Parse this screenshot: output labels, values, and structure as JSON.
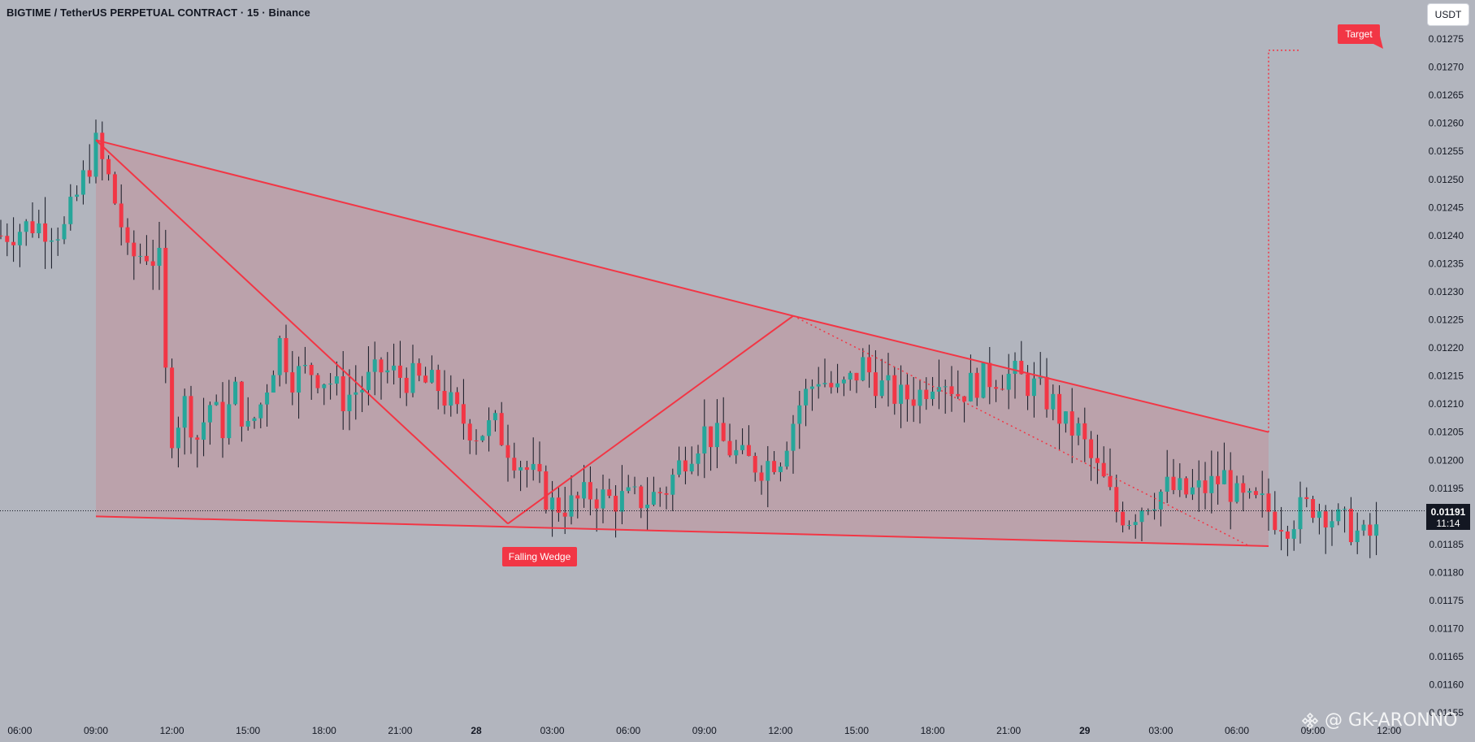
{
  "header": {
    "title": "BIGTIME / TetherUS PERPETUAL CONTRACT · 15 · Binance",
    "currency": "USDT"
  },
  "watermark": {
    "text": "@ GK-ARONNO"
  },
  "annotations": {
    "falling_wedge": "Falling Wedge",
    "target": "Target"
  },
  "price_badge": {
    "price": "0.01191",
    "countdown": "11:14"
  },
  "colors": {
    "background": "#b2b5be",
    "bull": "#26a69a",
    "bear": "#f23645",
    "pattern": "#f23645",
    "pattern_fill": "rgba(242,54,69,0.15)"
  },
  "chart_data": {
    "type": "candlestick",
    "title": "BIGTIME / TetherUS PERPETUAL CONTRACT · 15 · Binance",
    "ylim": [
      0.01155,
      0.01277
    ],
    "y_ticks": [
      "0.01275",
      "0.01270",
      "0.01265",
      "0.01260",
      "0.01255",
      "0.01250",
      "0.01245",
      "0.01240",
      "0.01235",
      "0.01230",
      "0.01225",
      "0.01220",
      "0.01215",
      "0.01210",
      "0.01205",
      "0.01200",
      "0.01195",
      "0.01190",
      "0.01185",
      "0.01180",
      "0.01175",
      "0.01170",
      "0.01165",
      "0.01160",
      "0.01155"
    ],
    "x_ticks": [
      {
        "label": "06:00",
        "idx": -12
      },
      {
        "label": "09:00",
        "idx": 0
      },
      {
        "label": "12:00",
        "idx": 12
      },
      {
        "label": "15:00",
        "idx": 24
      },
      {
        "label": "18:00",
        "idx": 36
      },
      {
        "label": "21:00",
        "idx": 48
      },
      {
        "label": "28",
        "idx": 60
      },
      {
        "label": "03:00",
        "idx": 72
      },
      {
        "label": "06:00",
        "idx": 84
      },
      {
        "label": "09:00",
        "idx": 96
      },
      {
        "label": "12:00",
        "idx": 108
      },
      {
        "label": "15:00",
        "idx": 120
      },
      {
        "label": "18:00",
        "idx": 132
      },
      {
        "label": "21:00",
        "idx": 144
      },
      {
        "label": "29",
        "idx": 156
      },
      {
        "label": "03:00",
        "idx": 168
      },
      {
        "label": "06:00",
        "idx": 180
      },
      {
        "label": "09:00",
        "idx": 192
      },
      {
        "label": "12:00",
        "idx": 204
      }
    ],
    "anchors": [
      [
        -15,
        0.0124
      ],
      [
        -10,
        0.01242
      ],
      [
        -5,
        0.01241
      ],
      [
        -2,
        0.0125
      ],
      [
        0,
        0.01256
      ],
      [
        2,
        0.0125
      ],
      [
        4,
        0.01242
      ],
      [
        5,
        0.01236
      ],
      [
        8,
        0.01237
      ],
      [
        10,
        0.01235
      ],
      [
        11,
        0.01215
      ],
      [
        12,
        0.01205
      ],
      [
        14,
        0.0121
      ],
      [
        16,
        0.01204
      ],
      [
        18,
        0.0121
      ],
      [
        20,
        0.01206
      ],
      [
        22,
        0.01212
      ],
      [
        24,
        0.01205
      ],
      [
        26,
        0.0121
      ],
      [
        29,
        0.01221
      ],
      [
        31,
        0.01215
      ],
      [
        34,
        0.01216
      ],
      [
        37,
        0.01214
      ],
      [
        39,
        0.01211
      ],
      [
        42,
        0.01213
      ],
      [
        45,
        0.01216
      ],
      [
        48,
        0.01215
      ],
      [
        51,
        0.01214
      ],
      [
        54,
        0.01213
      ],
      [
        57,
        0.01208
      ],
      [
        60,
        0.01205
      ],
      [
        63,
        0.01206
      ],
      [
        66,
        0.01201
      ],
      [
        69,
        0.01197
      ],
      [
        72,
        0.01192
      ],
      [
        75,
        0.01192
      ],
      [
        78,
        0.01194
      ],
      [
        81,
        0.01193
      ],
      [
        84,
        0.01193
      ],
      [
        87,
        0.01193
      ],
      [
        90,
        0.01195
      ],
      [
        93,
        0.01201
      ],
      [
        96,
        0.01205
      ],
      [
        99,
        0.01203
      ],
      [
        102,
        0.012
      ],
      [
        105,
        0.01199
      ],
      [
        108,
        0.01201
      ],
      [
        111,
        0.0121
      ],
      [
        114,
        0.01215
      ],
      [
        117,
        0.01212
      ],
      [
        119,
        0.01214
      ],
      [
        121,
        0.01217
      ],
      [
        124,
        0.01213
      ],
      [
        127,
        0.01211
      ],
      [
        130,
        0.01212
      ],
      [
        133,
        0.01216
      ],
      [
        136,
        0.01212
      ],
      [
        139,
        0.01214
      ],
      [
        142,
        0.01215
      ],
      [
        145,
        0.01215
      ],
      [
        148,
        0.01213
      ],
      [
        151,
        0.0121
      ],
      [
        153,
        0.01206
      ],
      [
        155,
        0.01205
      ],
      [
        157,
        0.012
      ],
      [
        159,
        0.01196
      ],
      [
        161,
        0.01191
      ],
      [
        163,
        0.0119
      ],
      [
        166,
        0.01193
      ],
      [
        169,
        0.01195
      ],
      [
        172,
        0.01194
      ],
      [
        175,
        0.01195
      ],
      [
        178,
        0.01197
      ],
      [
        180,
        0.01193
      ],
      [
        182,
        0.01192
      ],
      [
        184,
        0.01192
      ],
      [
        186,
        0.0119
      ],
      [
        188,
        0.01189
      ],
      [
        190,
        0.01191
      ],
      [
        192,
        0.01192
      ],
      [
        194,
        0.01191
      ],
      [
        196,
        0.01189
      ],
      [
        198,
        0.01188
      ],
      [
        200,
        0.01186
      ],
      [
        202,
        0.01187
      ],
      [
        204,
        0.01191
      ]
    ],
    "pattern_points": {
      "upper_start": [
        0,
        0.01257
      ],
      "upper_pivot": [
        110,
        0.012257
      ],
      "upper_end": [
        185,
        0.01205
      ],
      "lower_start": [
        0,
        0.0119
      ],
      "lower_end": [
        185,
        0.011847
      ],
      "zigzag": [
        [
          0,
          0.01257
        ],
        [
          65,
          0.011887
        ],
        [
          110,
          0.012257
        ],
        [
          182,
          0.011847
        ]
      ],
      "target_top": 0.01273
    },
    "current_price": 0.01191
  }
}
